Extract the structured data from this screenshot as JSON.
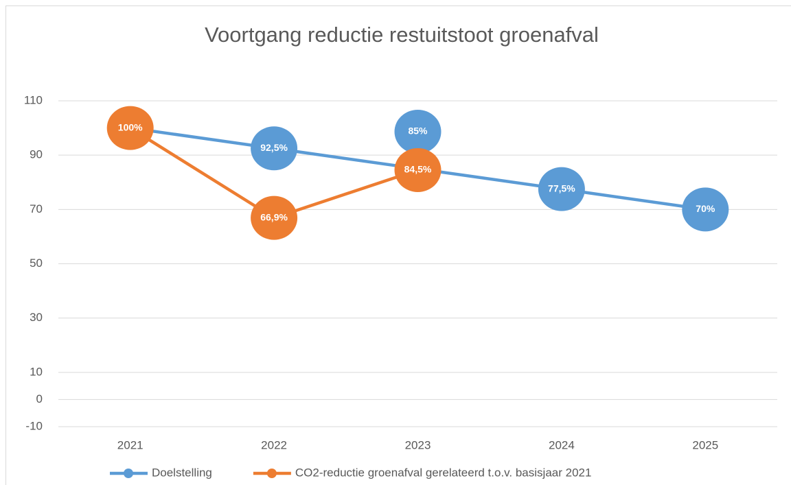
{
  "chart_data": {
    "type": "line",
    "title": "Voortgang reductie restuitstoot groenafval",
    "categories": [
      "2021",
      "2022",
      "2023",
      "2024",
      "2025"
    ],
    "series": [
      {
        "name": "Doelstelling",
        "color": "#5b9bd5",
        "values": [
          100,
          92.5,
          85,
          77.5,
          70
        ],
        "value_labels": [
          null,
          "92,5%",
          "85%",
          "77,5%",
          "70%"
        ]
      },
      {
        "name": "CO2-reductie groenafval gerelateerd t.o.v. basisjaar 2021",
        "color": "#ed7d31",
        "values": [
          100,
          66.9,
          84.5,
          null,
          null
        ],
        "value_labels": [
          "100%",
          "66,9%",
          "84,5%",
          null,
          null
        ]
      }
    ],
    "ylim": [
      -10,
      110
    ],
    "yticks": [
      110,
      90,
      70,
      50,
      30,
      10,
      0,
      -10
    ],
    "grid": true,
    "legend": "bottom"
  }
}
